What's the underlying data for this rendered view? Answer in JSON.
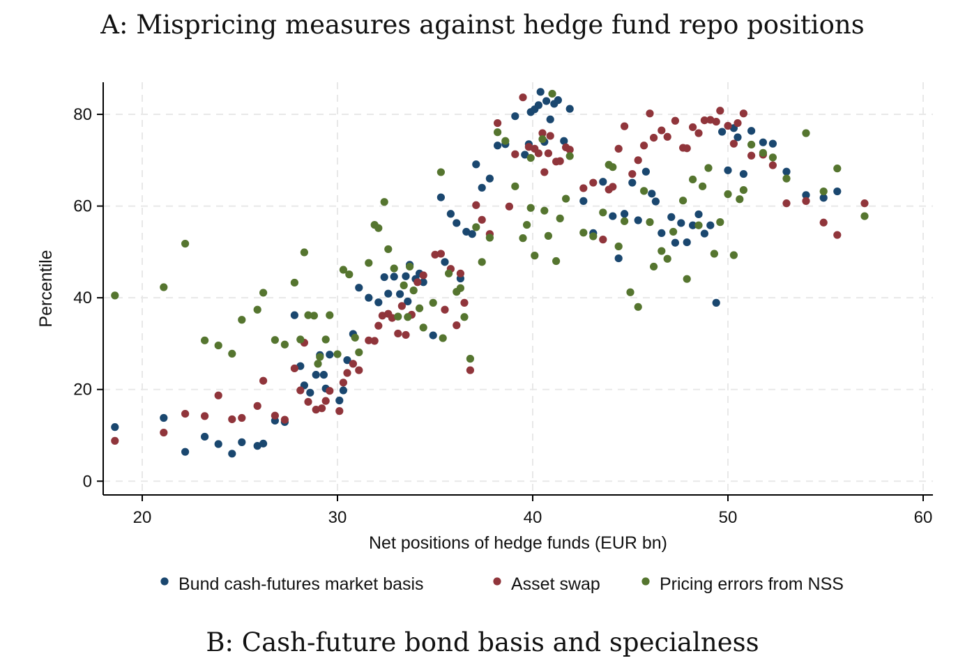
{
  "titles": {
    "panel_a": "A: Mispricing measures against hedge fund repo positions",
    "panel_b": "B: Cash-future bond basis and specialness"
  },
  "chart_data": {
    "type": "scatter",
    "title": "A: Mispricing measures against hedge fund repo positions",
    "xlabel": "Net positions of hedge funds (EUR bn)",
    "ylabel": "Percentile",
    "xlim": [
      18,
      60.5
    ],
    "ylim": [
      -3,
      87
    ],
    "xticks": [
      20,
      30,
      40,
      50,
      60
    ],
    "yticks": [
      0,
      20,
      40,
      60,
      80
    ],
    "grid": true,
    "legend": "bottom",
    "series": [
      {
        "name": "Bund cash-futures market basis",
        "color": "#1a476f",
        "points": [
          [
            18.6,
            11.8
          ],
          [
            21.1,
            13.8
          ],
          [
            22.2,
            6.4
          ],
          [
            23.2,
            9.7
          ],
          [
            23.9,
            8.1
          ],
          [
            24.6,
            6.0
          ],
          [
            25.1,
            8.5
          ],
          [
            25.9,
            7.7
          ],
          [
            26.2,
            8.2
          ],
          [
            26.8,
            13.2
          ],
          [
            27.3,
            12.9
          ],
          [
            27.8,
            36.2
          ],
          [
            28.1,
            25.1
          ],
          [
            28.3,
            20.9
          ],
          [
            28.6,
            19.3
          ],
          [
            28.9,
            23.2
          ],
          [
            29.1,
            27.5
          ],
          [
            29.3,
            23.2
          ],
          [
            29.4,
            20.2
          ],
          [
            29.6,
            27.6
          ],
          [
            30.1,
            17.6
          ],
          [
            30.3,
            19.8
          ],
          [
            30.5,
            26.4
          ],
          [
            30.8,
            32.1
          ],
          [
            31.1,
            42.2
          ],
          [
            31.6,
            40.0
          ],
          [
            32.1,
            39.0
          ],
          [
            32.4,
            44.5
          ],
          [
            32.6,
            40.9
          ],
          [
            32.9,
            44.6
          ],
          [
            33.2,
            40.8
          ],
          [
            33.5,
            44.7
          ],
          [
            33.6,
            39.2
          ],
          [
            33.7,
            47.2
          ],
          [
            34.0,
            44.1
          ],
          [
            34.2,
            45.3
          ],
          [
            34.4,
            43.4
          ],
          [
            34.9,
            31.8
          ],
          [
            35.3,
            61.9
          ],
          [
            35.5,
            47.8
          ],
          [
            35.8,
            58.3
          ],
          [
            36.1,
            56.3
          ],
          [
            36.3,
            44.2
          ],
          [
            36.6,
            54.4
          ],
          [
            36.9,
            53.9
          ],
          [
            37.1,
            69.1
          ],
          [
            37.4,
            64.0
          ],
          [
            37.8,
            66.0
          ],
          [
            38.2,
            73.2
          ],
          [
            38.6,
            73.5
          ],
          [
            39.1,
            79.6
          ],
          [
            39.6,
            71.2
          ],
          [
            39.8,
            73.5
          ],
          [
            39.9,
            80.5
          ],
          [
            40.1,
            81.1
          ],
          [
            40.3,
            82.0
          ],
          [
            40.4,
            84.9
          ],
          [
            40.6,
            74.0
          ],
          [
            40.7,
            82.9
          ],
          [
            40.9,
            78.9
          ],
          [
            41.1,
            82.3
          ],
          [
            41.3,
            83.1
          ],
          [
            41.6,
            74.2
          ],
          [
            41.9,
            81.2
          ],
          [
            42.6,
            61.1
          ],
          [
            43.1,
            54.1
          ],
          [
            43.6,
            65.3
          ],
          [
            44.1,
            57.8
          ],
          [
            44.4,
            48.6
          ],
          [
            44.7,
            58.3
          ],
          [
            45.1,
            65.1
          ],
          [
            45.4,
            56.9
          ],
          [
            45.8,
            67.5
          ],
          [
            46.1,
            62.7
          ],
          [
            46.3,
            61.0
          ],
          [
            46.6,
            54.1
          ],
          [
            47.1,
            57.6
          ],
          [
            47.3,
            52.0
          ],
          [
            47.6,
            56.3
          ],
          [
            47.9,
            52.1
          ],
          [
            48.2,
            55.8
          ],
          [
            48.5,
            58.2
          ],
          [
            48.8,
            54.0
          ],
          [
            49.1,
            55.8
          ],
          [
            49.4,
            38.9
          ],
          [
            49.7,
            76.2
          ],
          [
            50.0,
            67.8
          ],
          [
            50.3,
            77.0
          ],
          [
            50.5,
            75.0
          ],
          [
            50.8,
            67.0
          ],
          [
            51.2,
            76.4
          ],
          [
            51.8,
            73.9
          ],
          [
            52.3,
            73.6
          ],
          [
            53.0,
            67.5
          ],
          [
            54.0,
            62.4
          ],
          [
            54.9,
            61.8
          ],
          [
            55.6,
            63.2
          ]
        ]
      },
      {
        "name": "Asset swap",
        "color": "#90353b",
        "points": [
          [
            18.6,
            8.8
          ],
          [
            21.1,
            10.6
          ],
          [
            22.2,
            14.7
          ],
          [
            23.2,
            14.2
          ],
          [
            23.9,
            18.7
          ],
          [
            24.6,
            13.5
          ],
          [
            25.1,
            13.8
          ],
          [
            25.9,
            16.4
          ],
          [
            26.2,
            21.9
          ],
          [
            26.8,
            14.3
          ],
          [
            27.3,
            13.4
          ],
          [
            27.8,
            24.6
          ],
          [
            28.1,
            19.8
          ],
          [
            28.3,
            30.2
          ],
          [
            28.5,
            17.3
          ],
          [
            28.9,
            15.6
          ],
          [
            29.2,
            15.9
          ],
          [
            29.4,
            17.5
          ],
          [
            29.6,
            19.7
          ],
          [
            30.1,
            15.3
          ],
          [
            30.3,
            21.5
          ],
          [
            30.5,
            23.6
          ],
          [
            30.8,
            25.6
          ],
          [
            31.1,
            24.2
          ],
          [
            31.6,
            30.7
          ],
          [
            31.9,
            30.6
          ],
          [
            32.1,
            33.9
          ],
          [
            32.3,
            36.1
          ],
          [
            32.6,
            36.5
          ],
          [
            32.8,
            35.6
          ],
          [
            33.1,
            32.2
          ],
          [
            33.3,
            38.2
          ],
          [
            33.5,
            31.9
          ],
          [
            33.8,
            36.3
          ],
          [
            34.1,
            43.4
          ],
          [
            34.4,
            44.9
          ],
          [
            35.0,
            49.4
          ],
          [
            35.3,
            49.6
          ],
          [
            35.5,
            37.4
          ],
          [
            35.8,
            46.3
          ],
          [
            36.1,
            34.0
          ],
          [
            36.3,
            45.3
          ],
          [
            36.5,
            38.9
          ],
          [
            36.8,
            24.2
          ],
          [
            37.1,
            60.2
          ],
          [
            37.4,
            57.0
          ],
          [
            37.8,
            53.9
          ],
          [
            38.2,
            78.1
          ],
          [
            38.8,
            59.9
          ],
          [
            39.1,
            71.3
          ],
          [
            39.5,
            83.7
          ],
          [
            39.8,
            72.9
          ],
          [
            40.1,
            72.5
          ],
          [
            40.3,
            71.5
          ],
          [
            40.5,
            75.9
          ],
          [
            40.6,
            67.4
          ],
          [
            40.8,
            71.5
          ],
          [
            40.9,
            75.3
          ],
          [
            41.2,
            69.7
          ],
          [
            41.4,
            69.8
          ],
          [
            41.7,
            72.8
          ],
          [
            41.9,
            72.3
          ],
          [
            42.6,
            63.9
          ],
          [
            43.1,
            65.1
          ],
          [
            43.6,
            52.7
          ],
          [
            43.9,
            63.6
          ],
          [
            44.1,
            64.2
          ],
          [
            44.4,
            72.5
          ],
          [
            44.7,
            77.4
          ],
          [
            45.1,
            67.0
          ],
          [
            45.4,
            70.0
          ],
          [
            45.7,
            73.2
          ],
          [
            46.0,
            80.2
          ],
          [
            46.2,
            74.9
          ],
          [
            46.6,
            76.5
          ],
          [
            46.9,
            75.1
          ],
          [
            47.3,
            78.6
          ],
          [
            47.7,
            72.7
          ],
          [
            47.9,
            72.6
          ],
          [
            48.2,
            77.2
          ],
          [
            48.5,
            75.9
          ],
          [
            48.8,
            78.7
          ],
          [
            49.1,
            78.8
          ],
          [
            49.4,
            78.4
          ],
          [
            49.6,
            80.8
          ],
          [
            50.0,
            77.5
          ],
          [
            50.3,
            73.6
          ],
          [
            50.5,
            78.1
          ],
          [
            50.8,
            80.2
          ],
          [
            51.2,
            71.0
          ],
          [
            51.8,
            71.2
          ],
          [
            52.3,
            68.9
          ],
          [
            53.0,
            60.6
          ],
          [
            54.0,
            61.1
          ],
          [
            54.9,
            56.4
          ],
          [
            55.6,
            53.7
          ],
          [
            57.0,
            60.6
          ]
        ]
      },
      {
        "name": "Pricing errors from NSS",
        "color": "#55752f",
        "points": [
          [
            18.6,
            40.5
          ],
          [
            21.1,
            42.3
          ],
          [
            22.2,
            51.8
          ],
          [
            23.2,
            30.7
          ],
          [
            23.9,
            29.6
          ],
          [
            24.6,
            27.8
          ],
          [
            25.1,
            35.2
          ],
          [
            25.9,
            37.4
          ],
          [
            26.2,
            41.1
          ],
          [
            26.8,
            30.8
          ],
          [
            27.3,
            29.8
          ],
          [
            27.8,
            43.3
          ],
          [
            28.1,
            30.9
          ],
          [
            28.3,
            49.9
          ],
          [
            28.5,
            36.2
          ],
          [
            28.8,
            36.1
          ],
          [
            29.0,
            25.6
          ],
          [
            29.1,
            27.1
          ],
          [
            29.4,
            30.9
          ],
          [
            29.6,
            36.2
          ],
          [
            30.0,
            27.7
          ],
          [
            30.3,
            46.1
          ],
          [
            30.6,
            45.1
          ],
          [
            30.9,
            31.3
          ],
          [
            31.1,
            28.1
          ],
          [
            31.6,
            47.6
          ],
          [
            31.9,
            55.9
          ],
          [
            32.1,
            55.2
          ],
          [
            32.4,
            60.9
          ],
          [
            32.6,
            50.6
          ],
          [
            32.9,
            46.4
          ],
          [
            33.1,
            35.9
          ],
          [
            33.4,
            42.7
          ],
          [
            33.6,
            35.8
          ],
          [
            33.7,
            46.8
          ],
          [
            33.9,
            41.6
          ],
          [
            34.2,
            37.7
          ],
          [
            34.4,
            33.5
          ],
          [
            34.9,
            38.9
          ],
          [
            35.3,
            67.4
          ],
          [
            35.4,
            31.2
          ],
          [
            35.7,
            45.3
          ],
          [
            36.1,
            41.3
          ],
          [
            36.3,
            42.1
          ],
          [
            36.5,
            35.8
          ],
          [
            36.8,
            26.7
          ],
          [
            37.1,
            55.4
          ],
          [
            37.4,
            47.8
          ],
          [
            37.8,
            53.1
          ],
          [
            38.2,
            76.1
          ],
          [
            38.6,
            74.2
          ],
          [
            39.1,
            64.3
          ],
          [
            39.5,
            53.0
          ],
          [
            39.7,
            55.9
          ],
          [
            39.9,
            70.5
          ],
          [
            39.9,
            59.6
          ],
          [
            40.1,
            49.2
          ],
          [
            40.5,
            74.6
          ],
          [
            40.6,
            59.0
          ],
          [
            40.8,
            53.5
          ],
          [
            41.0,
            84.5
          ],
          [
            41.2,
            48.0
          ],
          [
            41.4,
            57.3
          ],
          [
            41.7,
            61.6
          ],
          [
            41.9,
            70.9
          ],
          [
            42.6,
            54.2
          ],
          [
            43.1,
            53.4
          ],
          [
            43.6,
            58.6
          ],
          [
            43.9,
            69.0
          ],
          [
            44.1,
            68.5
          ],
          [
            44.4,
            51.2
          ],
          [
            44.7,
            56.7
          ],
          [
            45.0,
            41.2
          ],
          [
            45.4,
            38.0
          ],
          [
            45.7,
            63.3
          ],
          [
            46.0,
            56.5
          ],
          [
            46.2,
            46.8
          ],
          [
            46.6,
            50.2
          ],
          [
            46.9,
            48.5
          ],
          [
            47.2,
            54.4
          ],
          [
            47.7,
            61.2
          ],
          [
            47.9,
            44.1
          ],
          [
            48.2,
            65.8
          ],
          [
            48.5,
            55.8
          ],
          [
            48.7,
            64.3
          ],
          [
            49.0,
            68.3
          ],
          [
            49.3,
            49.6
          ],
          [
            49.6,
            56.5
          ],
          [
            50.0,
            62.6
          ],
          [
            50.3,
            49.3
          ],
          [
            50.6,
            61.5
          ],
          [
            50.8,
            63.5
          ],
          [
            51.2,
            73.4
          ],
          [
            51.8,
            71.6
          ],
          [
            52.3,
            70.6
          ],
          [
            53.0,
            66.0
          ],
          [
            54.0,
            75.9
          ],
          [
            54.9,
            63.2
          ],
          [
            55.6,
            68.2
          ],
          [
            57.0,
            57.8
          ]
        ]
      }
    ]
  }
}
